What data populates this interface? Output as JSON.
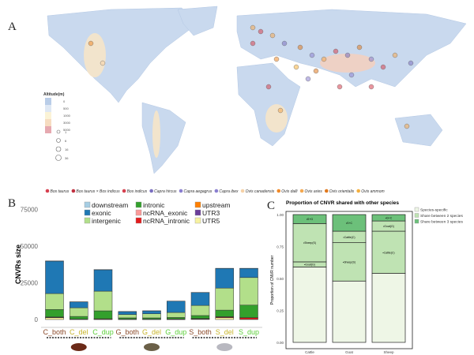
{
  "panels": {
    "a": "A",
    "b": "B",
    "c": "C"
  },
  "map": {
    "legend_title": "Altitude(m)",
    "altitude_ticks": [
      "0",
      "500",
      "1000",
      "3000",
      "5000"
    ],
    "altitude_colors": [
      "#b9cde8",
      "#dfe8f4",
      "#fbf3d6",
      "#f6dcc0",
      "#e6a9b0"
    ],
    "size_legend": [
      "1",
      "6",
      "16",
      "36"
    ],
    "species": [
      {
        "name": "Bos taurus",
        "color": "#d6404f",
        "marker": "circle"
      },
      {
        "name": "Bos taurus × Bos indicus",
        "color": "#c0303f",
        "marker": "circle-cross"
      },
      {
        "name": "Bos indicus",
        "color": "#d6404f",
        "marker": "circle"
      },
      {
        "name": "Capra hircus",
        "color": "#7a6fc0",
        "marker": "circle-dot"
      },
      {
        "name": "Capra aegagrus",
        "color": "#8a7fd0",
        "marker": "circle"
      },
      {
        "name": "Capra ibex",
        "color": "#8a7fd0",
        "marker": "plus"
      },
      {
        "name": "Ovis canadensis",
        "color": "#f6d2a8",
        "marker": "diamond-open"
      },
      {
        "name": "Ovis dalli",
        "color": "#f08a2a",
        "marker": "plus"
      },
      {
        "name": "Ovis aries",
        "color": "#f4a850",
        "marker": "circle"
      },
      {
        "name": "Ovis orientalis",
        "color": "#e07a20",
        "marker": "diamond"
      },
      {
        "name": "Ovis ammom",
        "color": "#f4b040",
        "marker": "plus"
      }
    ]
  },
  "chart_data": [
    {
      "type": "bar",
      "stacked": true,
      "ylabel": "CNVRs size",
      "xlabel": "",
      "ylim": [
        0,
        75000
      ],
      "yticks": [
        "0",
        "25000",
        "50000",
        "75000"
      ],
      "categories": [
        "C_both",
        "C_del",
        "C_dup",
        "G_both",
        "G_del",
        "G_dup",
        "S_both",
        "S_del",
        "S_dup"
      ],
      "category_colors": [
        "#8b4a2a",
        "#c8b42a",
        "#5ccf3a",
        "#8b4a2a",
        "#c8b42a",
        "#5ccf3a",
        "#8b4a2a",
        "#c8b42a",
        "#5ccf3a"
      ],
      "groups": [
        {
          "label": "Cattle",
          "members": [
            0,
            1,
            2
          ]
        },
        {
          "label": "Goat",
          "members": [
            3,
            4,
            5
          ]
        },
        {
          "label": "Sheep",
          "members": [
            6,
            7,
            8
          ]
        }
      ],
      "legend_position": "top",
      "series": [
        {
          "name": "UTR5",
          "color": "#f7f2a0",
          "values": [
            1200,
            0,
            0,
            0,
            0,
            0,
            300,
            1200,
            0
          ]
        },
        {
          "name": "UTR3",
          "color": "#6a3d9a",
          "values": [
            100,
            50,
            50,
            30,
            30,
            30,
            50,
            100,
            100
          ]
        },
        {
          "name": "upstream",
          "color": "#ff7f00",
          "values": [
            50,
            20,
            20,
            10,
            10,
            10,
            20,
            50,
            50
          ]
        },
        {
          "name": "ncRNA_intronic",
          "color": "#e31a1c",
          "values": [
            300,
            200,
            400,
            200,
            200,
            300,
            300,
            500,
            1100
          ]
        },
        {
          "name": "ncRNA_exonic",
          "color": "#fb9a99",
          "values": [
            50,
            30,
            30,
            10,
            10,
            10,
            30,
            50,
            50
          ]
        },
        {
          "name": "intronic",
          "color": "#33a02c",
          "values": [
            5100,
            1800,
            5400,
            860,
            850,
            1050,
            2000,
            4500,
            8500
          ]
        },
        {
          "name": "intergenic",
          "color": "#b2df8a",
          "values": [
            10900,
            5900,
            13400,
            2300,
            2800,
            3400,
            6900,
            15000,
            18800
          ]
        },
        {
          "name": "exonic",
          "color": "#1f78b4",
          "values": [
            22100,
            4000,
            14600,
            2000,
            2000,
            7700,
            8800,
            13400,
            6200
          ]
        },
        {
          "name": "downstream",
          "color": "#a6cee3",
          "values": [
            100,
            50,
            100,
            20,
            20,
            50,
            50,
            100,
            100
          ]
        }
      ]
    },
    {
      "type": "bar",
      "stacked": true,
      "title": "Proportion of CNVR shared with other species",
      "ylabel": "Proportion  of  CNVR  number",
      "ylim": [
        0,
        1
      ],
      "yticks": [
        "0.00",
        "0.25",
        "0.50",
        "0.75",
        "1.00"
      ],
      "categories": [
        "Cattle",
        "Goat",
        "Sheep"
      ],
      "legend_position": "right",
      "legend": [
        {
          "name": "Species-specific",
          "color": "#eef6e6"
        },
        {
          "name": "Share between 2 species",
          "color": "#bfe3b3"
        },
        {
          "name": "Share between 3 species",
          "color": "#6cc07a"
        }
      ],
      "stacks": [
        [
          {
            "type": "Species-specific",
            "value": 0.59,
            "label": ""
          },
          {
            "type": "Share between 2 species",
            "value": 0.04,
            "label": "•Goat(G)"
          },
          {
            "type": "Share between 2 species",
            "value": 0.3,
            "label": "•Sheep(S)"
          },
          {
            "type": "Share between 3 species",
            "value": 0.07,
            "label": "•S+G"
          }
        ],
        [
          {
            "type": "Species-specific",
            "value": 0.48,
            "label": ""
          },
          {
            "type": "Share between 2 species",
            "value": 0.3,
            "label": "•Sheep(S)"
          },
          {
            "type": "Share between 2 species",
            "value": 0.09,
            "label": "•Cattle(C)"
          },
          {
            "type": "Share between 3 species",
            "value": 0.13,
            "label": "•S+C"
          }
        ],
        [
          {
            "type": "Species-specific",
            "value": 0.54,
            "label": ""
          },
          {
            "type": "Share between 2 species",
            "value": 0.33,
            "label": "•Cattle(C)"
          },
          {
            "type": "Share between 2 species",
            "value": 0.08,
            "label": "•Goat(G)"
          },
          {
            "type": "Share between 3 species",
            "value": 0.05,
            "label": "•G+C"
          }
        ]
      ]
    }
  ]
}
